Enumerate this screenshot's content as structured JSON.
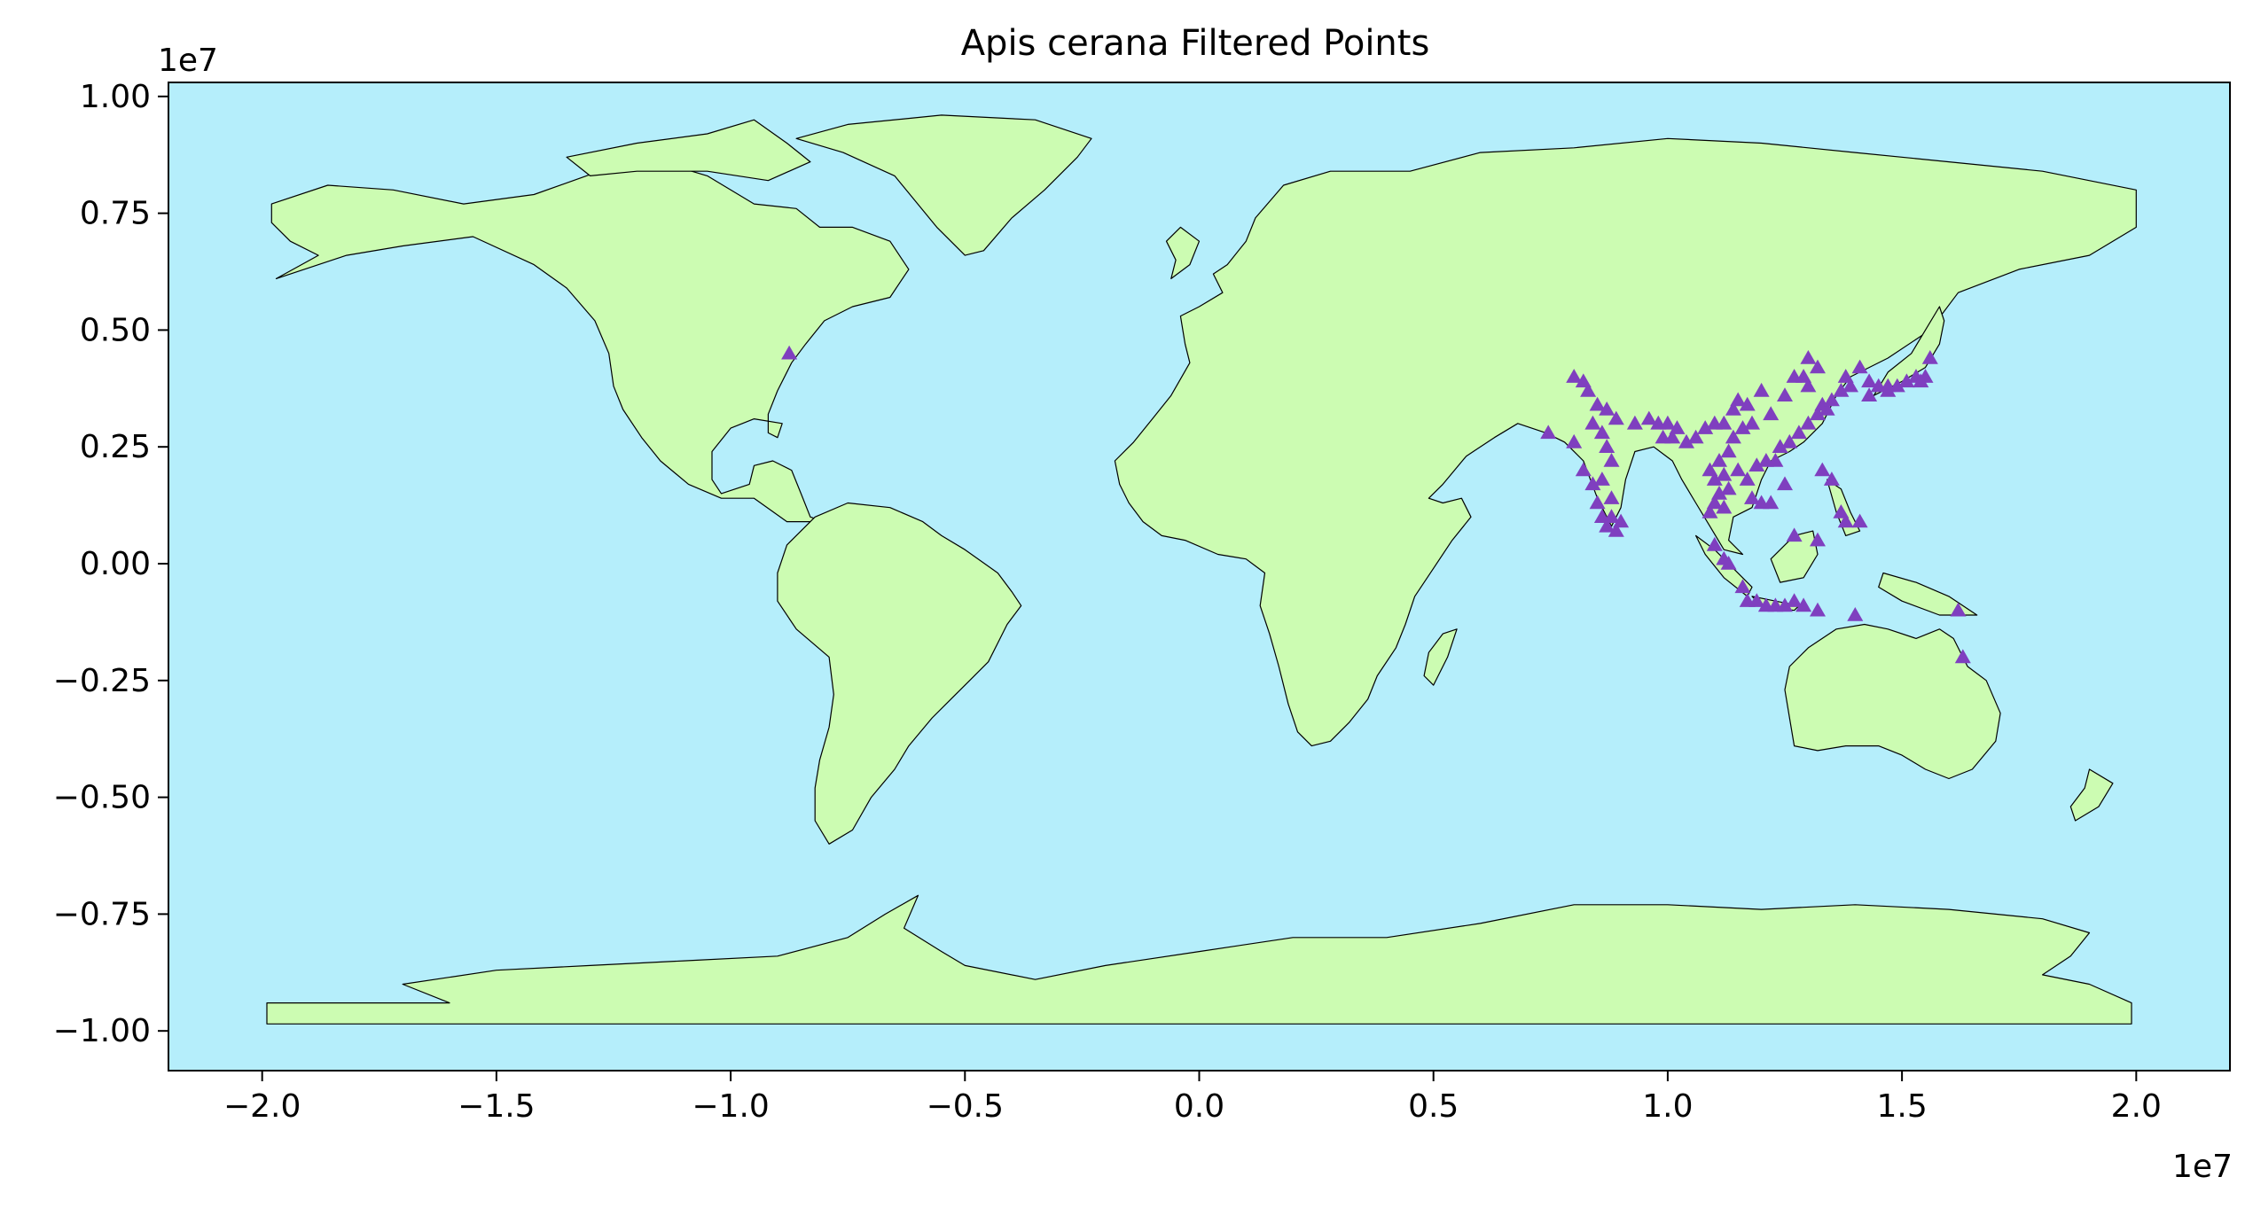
{
  "title": "Apis cerana Filtered Points",
  "colors": {
    "ocean": "#b5eefb",
    "land": "#ccfcb2",
    "border": "#000000",
    "marker": "#7f3fbf"
  },
  "chart_data": {
    "type": "scatter",
    "marker": "triangle",
    "title": "Apis cerana Filtered Points",
    "xlabel": "",
    "ylabel": "",
    "x_offset_label": "1e7",
    "y_offset_label": "1e7",
    "xlim": [
      -2.2,
      2.2
    ],
    "ylim": [
      -1.085,
      1.03
    ],
    "xticks": [
      -2.0,
      -1.5,
      -1.0,
      -0.5,
      0.0,
      0.5,
      1.0,
      1.5,
      2.0
    ],
    "yticks": [
      -1.0,
      -0.75,
      -0.5,
      -0.25,
      0.0,
      0.25,
      0.5,
      0.75,
      1.0
    ],
    "xtick_labels": [
      "−2.0",
      "−1.5",
      "−1.0",
      "−0.5",
      "0.0",
      "0.5",
      "1.0",
      "1.5",
      "2.0"
    ],
    "ytick_labels": [
      "−1.00",
      "−0.75",
      "−0.50",
      "−0.25",
      "0.00",
      "0.25",
      "0.50",
      "0.75",
      "1.00"
    ],
    "points": [
      [
        -0.875,
        0.45
      ],
      [
        0.745,
        0.28
      ],
      [
        0.8,
        0.4
      ],
      [
        0.82,
        0.39
      ],
      [
        0.83,
        0.37
      ],
      [
        0.85,
        0.34
      ],
      [
        0.84,
        0.3
      ],
      [
        0.87,
        0.33
      ],
      [
        0.89,
        0.31
      ],
      [
        0.86,
        0.28
      ],
      [
        0.8,
        0.26
      ],
      [
        0.82,
        0.2
      ],
      [
        0.84,
        0.17
      ],
      [
        0.85,
        0.13
      ],
      [
        0.86,
        0.1
      ],
      [
        0.87,
        0.08
      ],
      [
        0.88,
        0.1
      ],
      [
        0.89,
        0.07
      ],
      [
        0.9,
        0.09
      ],
      [
        0.88,
        0.14
      ],
      [
        0.86,
        0.18
      ],
      [
        0.88,
        0.22
      ],
      [
        0.87,
        0.25
      ],
      [
        0.93,
        0.3
      ],
      [
        0.96,
        0.31
      ],
      [
        0.98,
        0.3
      ],
      [
        1.0,
        0.3
      ],
      [
        1.02,
        0.29
      ],
      [
        1.01,
        0.27
      ],
      [
        0.99,
        0.27
      ],
      [
        1.04,
        0.26
      ],
      [
        1.06,
        0.27
      ],
      [
        1.08,
        0.29
      ],
      [
        1.1,
        0.3
      ],
      [
        1.12,
        0.3
      ],
      [
        1.14,
        0.33
      ],
      [
        1.15,
        0.35
      ],
      [
        1.17,
        0.34
      ],
      [
        1.2,
        0.37
      ],
      [
        1.22,
        0.32
      ],
      [
        1.18,
        0.3
      ],
      [
        1.16,
        0.29
      ],
      [
        1.14,
        0.27
      ],
      [
        1.13,
        0.24
      ],
      [
        1.11,
        0.22
      ],
      [
        1.09,
        0.2
      ],
      [
        1.1,
        0.18
      ],
      [
        1.12,
        0.19
      ],
      [
        1.13,
        0.16
      ],
      [
        1.11,
        0.15
      ],
      [
        1.1,
        0.13
      ],
      [
        1.09,
        0.11
      ],
      [
        1.12,
        0.12
      ],
      [
        1.15,
        0.2
      ],
      [
        1.17,
        0.18
      ],
      [
        1.18,
        0.14
      ],
      [
        1.2,
        0.13
      ],
      [
        1.22,
        0.13
      ],
      [
        1.19,
        0.21
      ],
      [
        1.21,
        0.22
      ],
      [
        1.24,
        0.25
      ],
      [
        1.26,
        0.26
      ],
      [
        1.28,
        0.28
      ],
      [
        1.3,
        0.3
      ],
      [
        1.32,
        0.32
      ],
      [
        1.33,
        0.34
      ],
      [
        1.34,
        0.33
      ],
      [
        1.29,
        0.4
      ],
      [
        1.3,
        0.44
      ],
      [
        1.32,
        0.42
      ],
      [
        1.35,
        0.35
      ],
      [
        1.3,
        0.38
      ],
      [
        1.27,
        0.4
      ],
      [
        1.25,
        0.36
      ],
      [
        1.23,
        0.22
      ],
      [
        1.25,
        0.17
      ],
      [
        1.33,
        0.2
      ],
      [
        1.35,
        0.18
      ],
      [
        1.37,
        0.11
      ],
      [
        1.38,
        0.09
      ],
      [
        1.41,
        0.09
      ],
      [
        1.32,
        0.05
      ],
      [
        1.27,
        0.06
      ],
      [
        1.1,
        0.04
      ],
      [
        1.12,
        0.01
      ],
      [
        1.13,
        0.0
      ],
      [
        1.16,
        -0.05
      ],
      [
        1.17,
        -0.08
      ],
      [
        1.19,
        -0.08
      ],
      [
        1.21,
        -0.09
      ],
      [
        1.23,
        -0.09
      ],
      [
        1.25,
        -0.09
      ],
      [
        1.27,
        -0.08
      ],
      [
        1.29,
        -0.09
      ],
      [
        1.32,
        -0.1
      ],
      [
        1.4,
        -0.11
      ],
      [
        1.63,
        -0.2
      ],
      [
        1.62,
        -0.1
      ],
      [
        1.38,
        0.4
      ],
      [
        1.41,
        0.42
      ],
      [
        1.43,
        0.39
      ],
      [
        1.45,
        0.38
      ],
      [
        1.47,
        0.38
      ],
      [
        1.49,
        0.38
      ],
      [
        1.51,
        0.39
      ],
      [
        1.53,
        0.4
      ],
      [
        1.55,
        0.4
      ],
      [
        1.56,
        0.44
      ],
      [
        1.54,
        0.39
      ],
      [
        1.39,
        0.38
      ],
      [
        1.43,
        0.36
      ],
      [
        1.47,
        0.37
      ],
      [
        1.37,
        0.37
      ]
    ]
  }
}
